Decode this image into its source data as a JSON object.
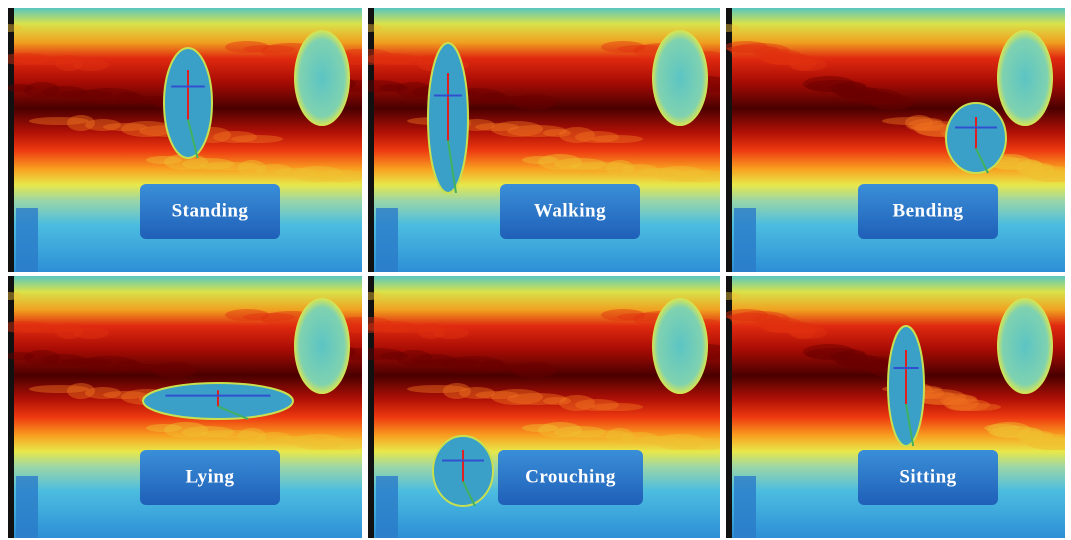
{
  "panels": [
    {
      "label": "Standing"
    },
    {
      "label": "Walking"
    },
    {
      "label": "Bending"
    },
    {
      "label": "Lying"
    },
    {
      "label": "Crouching"
    },
    {
      "label": "Sitting"
    }
  ]
}
